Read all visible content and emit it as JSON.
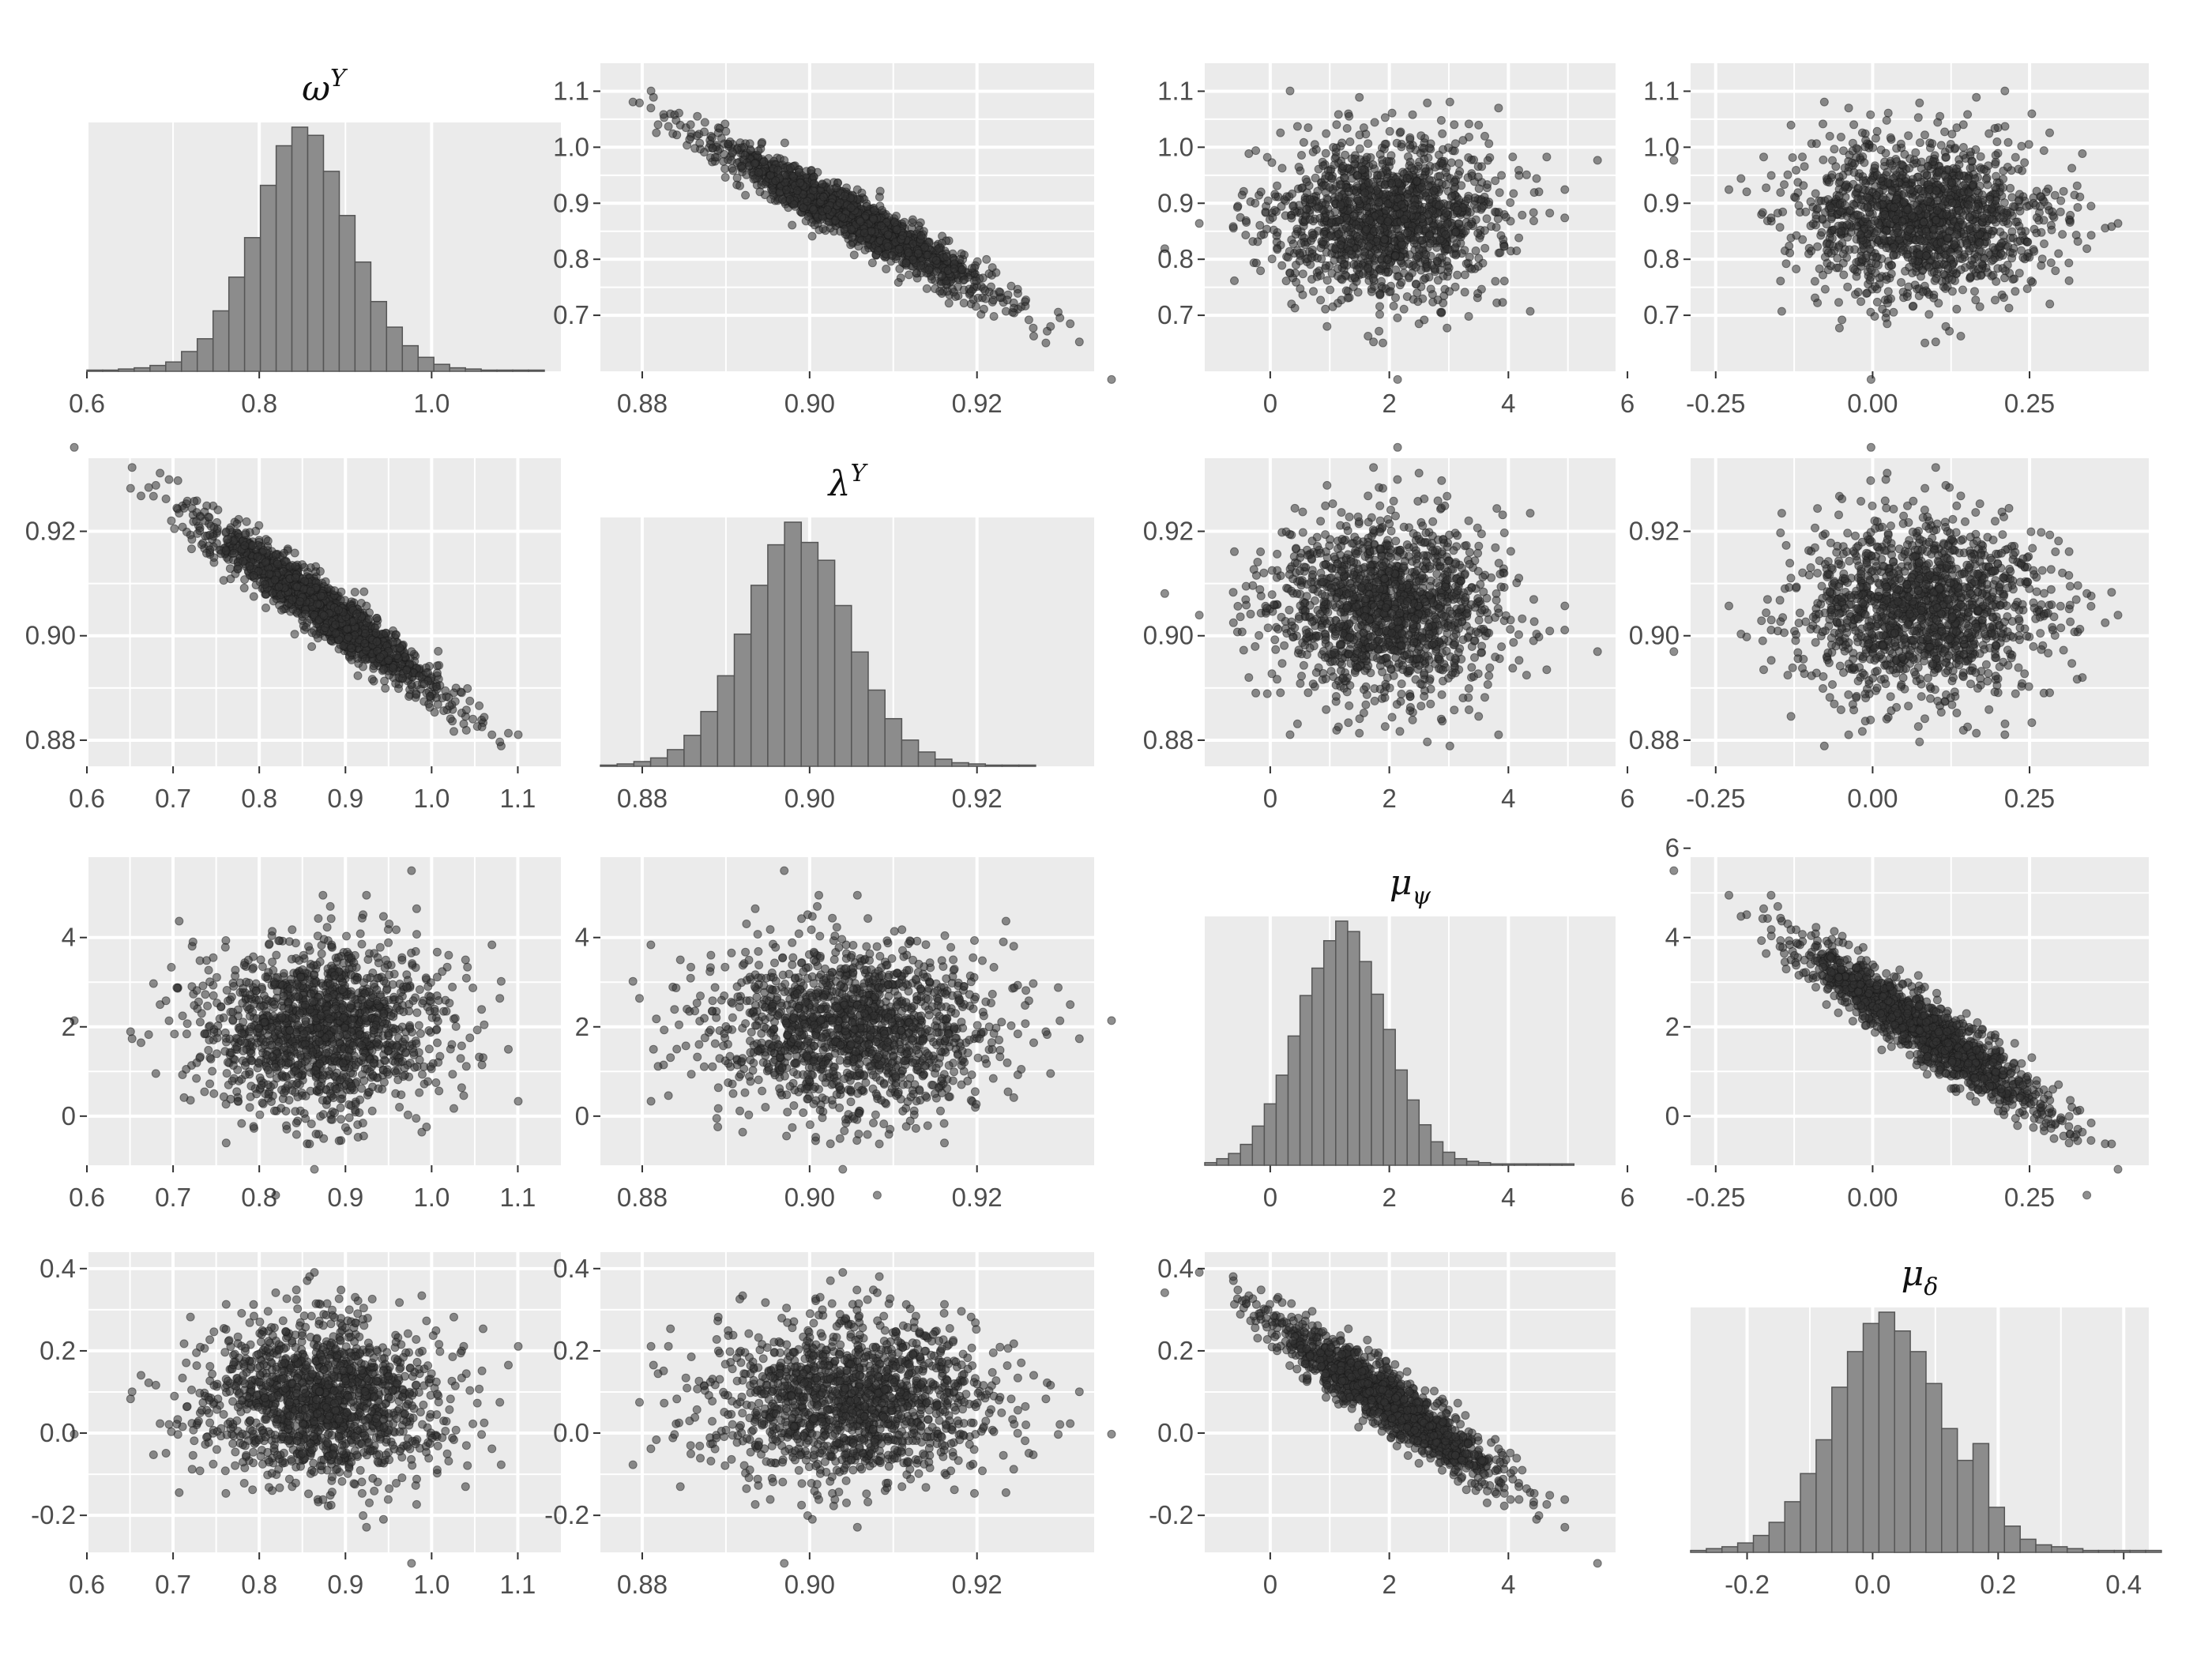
{
  "chart_data": {
    "type": "scatter",
    "layout": "scatterplot-matrix",
    "variables": [
      {
        "key": "omega",
        "title_base": "ω",
        "title_sup": "Y",
        "title_sub": ""
      },
      {
        "key": "lambda",
        "title_base": "λ",
        "title_sup": "Y",
        "title_sub": ""
      },
      {
        "key": "mupsi",
        "title_base": "μ",
        "title_sup": "",
        "title_sub": "ψ"
      },
      {
        "key": "mudelta",
        "title_base": "μ",
        "title_sup": "",
        "title_sub": "δ"
      }
    ],
    "axis_ranges": {
      "omega": [
        0.6,
        1.15
      ],
      "lambda": [
        0.875,
        0.934
      ],
      "mupsi": [
        -1.1,
        5.8
      ],
      "mudelta": [
        -0.29,
        0.44
      ]
    },
    "ticks": {
      "omega": {
        "values": [
          0.6,
          0.8,
          1.0
        ],
        "labels": [
          "0.6",
          "0.8",
          "1.0"
        ]
      },
      "omega_fine": {
        "values": [
          0.6,
          0.7,
          0.8,
          0.9,
          1.0,
          1.1
        ],
        "labels": [
          "0.6",
          "0.7",
          "0.8",
          "0.9",
          "1.0",
          "1.1"
        ]
      },
      "omega_y": {
        "values": [
          0.7,
          0.8,
          0.9,
          1.0,
          1.1
        ],
        "labels": [
          "0.7",
          "0.8",
          "0.9",
          "1.0",
          "1.1"
        ]
      },
      "lambda": {
        "values": [
          0.88,
          0.9,
          0.92
        ],
        "labels": [
          "0.88",
          "0.90",
          "0.92"
        ]
      },
      "mupsi_x": {
        "values": [
          0,
          2,
          4,
          6
        ],
        "labels": [
          "0",
          "2",
          "4",
          "6"
        ]
      },
      "mupsi_x_short": {
        "values": [
          0,
          2,
          4
        ],
        "labels": [
          "0",
          "2",
          "4"
        ]
      },
      "mupsi_y": {
        "values": [
          0,
          2,
          4
        ],
        "labels": [
          "0",
          "2",
          "4"
        ]
      },
      "mupsi_y_long": {
        "values": [
          0,
          2,
          4,
          6
        ],
        "labels": [
          "0",
          "2",
          "4",
          "6"
        ]
      },
      "mudelta_x": {
        "values": [
          -0.25,
          0.0,
          0.25
        ],
        "labels": [
          "-0.25",
          "0.00",
          "0.25"
        ]
      },
      "mudelta_x_fine": {
        "values": [
          -0.2,
          0.0,
          0.2,
          0.4
        ],
        "labels": [
          "-0.2",
          "0.0",
          "0.2",
          "0.4"
        ]
      },
      "mudelta_y": {
        "values": [
          -0.2,
          0.0,
          0.2,
          0.4
        ],
        "labels": [
          "-0.2",
          "0.0",
          "0.2",
          "0.4"
        ]
      }
    },
    "distributions": {
      "omega": {
        "mean": 0.875,
        "sd": 0.07
      },
      "lambda": {
        "mean": 0.905,
        "sd": 0.0085
      },
      "mupsi": {
        "mean": 1.95,
        "sd": 0.95
      },
      "mudelta": {
        "mean": 0.08,
        "sd": 0.1
      }
    },
    "correlations": {
      "omega_lambda": -0.95,
      "mupsi_mudelta": -0.93,
      "omega_mupsi": 0.0,
      "omega_mudelta": 0.0,
      "lambda_mupsi": 0.0,
      "lambda_mudelta": 0.0
    },
    "histograms": {
      "omega": {
        "bin_start": 0.6,
        "bin_width": 0.0183,
        "counts": [
          1,
          1,
          2,
          3,
          5,
          8,
          17,
          28,
          52,
          81,
          115,
          160,
          194,
          210,
          203,
          172,
          134,
          94,
          60,
          38,
          22,
          12,
          6,
          3,
          2,
          1,
          1,
          1,
          1
        ]
      },
      "lambda": {
        "bin_start": 0.875,
        "bin_width": 0.002,
        "counts": [
          1,
          2,
          4,
          7,
          14,
          26,
          46,
          76,
          111,
          152,
          186,
          205,
          188,
          173,
          135,
          96,
          64,
          40,
          22,
          12,
          6,
          3,
          2,
          1,
          1,
          1
        ]
      },
      "mupsi": {
        "bin_start": -1.1,
        "bin_width": 0.2,
        "counts": [
          2,
          5,
          9,
          16,
          30,
          47,
          69,
          99,
          130,
          151,
          172,
          187,
          179,
          156,
          131,
          104,
          73,
          50,
          31,
          18,
          10,
          5,
          3,
          2,
          1,
          1,
          1,
          1,
          1,
          1,
          1
        ]
      },
      "mudelta": {
        "bin_start": -0.29,
        "bin_width": 0.025,
        "counts": [
          1,
          2,
          3,
          5,
          9,
          16,
          27,
          42,
          60,
          88,
          107,
          122,
          128,
          118,
          107,
          90,
          66,
          49,
          58,
          24,
          14,
          7,
          4,
          3,
          2,
          1,
          1,
          1,
          1,
          1
        ]
      }
    },
    "scatter_n": 1500,
    "point_color": "#333333",
    "bar_color": "#8c8c8c",
    "panel_background": "#ebebeb",
    "grid_color": "#ffffff",
    "grid": true,
    "legend": "none"
  }
}
